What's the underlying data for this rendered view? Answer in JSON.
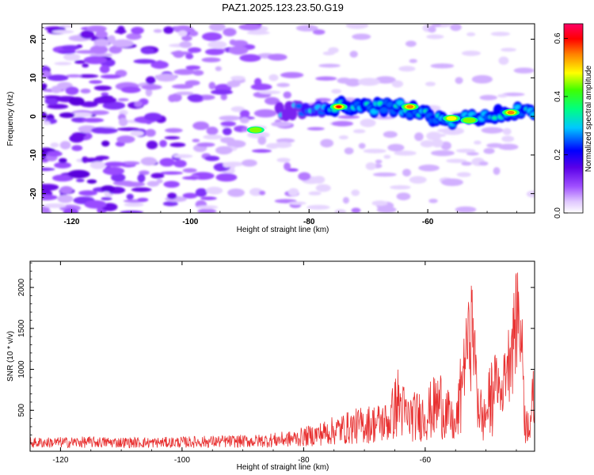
{
  "title": "PAZ1.2025.123.23.50.G19",
  "chart_data": [
    {
      "type": "heatmap",
      "xlabel": "Height of straight line (km)",
      "ylabel": "Frequency (Hz)",
      "xlim": [
        -125,
        -42
      ],
      "ylim": [
        -25,
        24
      ],
      "xticks": [
        -120,
        -100,
        -80,
        -60
      ],
      "xtick_labels": [
        "-120",
        "-100",
        "-80",
        "-60"
      ],
      "yticks": [
        20,
        10,
        0,
        -10,
        -20
      ],
      "ytick_labels": [
        "20",
        "10",
        "0",
        "-10",
        "-20"
      ],
      "colorbar": {
        "label": "Normalized spectral amplitude",
        "range": [
          0,
          0.65
        ],
        "ticks": [
          0,
          0.2,
          0.4,
          0.6
        ],
        "tick_labels": [
          "0.0",
          "0.2",
          "0.4",
          "0.6"
        ],
        "colormap": [
          "#ffffff",
          "#e0c8ff",
          "#a050ff",
          "#6a00e0",
          "#0000ff",
          "#00c8ff",
          "#00ff80",
          "#40ff00",
          "#ffff00",
          "#ff8000",
          "#ff0000",
          "#ff0066"
        ]
      },
      "signal_band": {
        "description": "strong band near 0-3 Hz from -85 km to -42 km",
        "x_start": -85,
        "x_end": -42,
        "freq_center": [
          [
            -85,
            1.5
          ],
          [
            -75,
            2.5
          ],
          [
            -65,
            2.5
          ],
          [
            -58,
            -1
          ],
          [
            -52,
            0
          ],
          [
            -45,
            1.5
          ]
        ],
        "peaks": [
          {
            "x": -75,
            "y": 2.5,
            "value": 0.6
          },
          {
            "x": -63,
            "y": 2.5,
            "value": 0.55
          },
          {
            "x": -46,
            "y": 1,
            "value": 0.5
          },
          {
            "x": -56,
            "y": -0.5,
            "value": 0.35
          },
          {
            "x": -53,
            "y": -1,
            "value": 0.3
          },
          {
            "x": -89,
            "y": -3.5,
            "value": 0.25
          }
        ]
      },
      "grid": false,
      "legend": "none"
    },
    {
      "type": "line",
      "xlabel": "Height of straight line (km)",
      "ylabel": "SNR (10 * v/v)",
      "xlim": [
        -125,
        -42
      ],
      "ylim": [
        0,
        2320
      ],
      "xticks": [
        -120,
        -100,
        -80,
        -60
      ],
      "xtick_labels": [
        "-120",
        "-100",
        "-80",
        "-60"
      ],
      "yticks": [
        500,
        1000,
        1500,
        2000
      ],
      "ytick_labels": [
        "500",
        "1000",
        "1500",
        "2000"
      ],
      "series": [
        {
          "color": "#e83030",
          "envelope_points": [
            [
              -125,
              130
            ],
            [
              -115,
              140
            ],
            [
              -105,
              130
            ],
            [
              -95,
              150
            ],
            [
              -88,
              160
            ],
            [
              -82,
              200
            ],
            [
              -78,
              280
            ],
            [
              -74,
              380
            ],
            [
              -70,
              470
            ],
            [
              -66,
              520
            ],
            [
              -64.5,
              900
            ],
            [
              -63,
              600
            ],
            [
              -60,
              650
            ],
            [
              -57.5,
              880
            ],
            [
              -55,
              400
            ],
            [
              -53.5,
              1500
            ],
            [
              -52.3,
              2140
            ],
            [
              -51.5,
              1100
            ],
            [
              -50.5,
              500
            ],
            [
              -48.5,
              1200
            ],
            [
              -47.5,
              1000
            ],
            [
              -45.5,
              1900
            ],
            [
              -44.8,
              2320
            ],
            [
              -44,
              1600
            ],
            [
              -43.5,
              400
            ],
            [
              -42.5,
              700
            ],
            [
              -42,
              1000
            ]
          ]
        }
      ],
      "grid": false,
      "legend": "none"
    }
  ]
}
